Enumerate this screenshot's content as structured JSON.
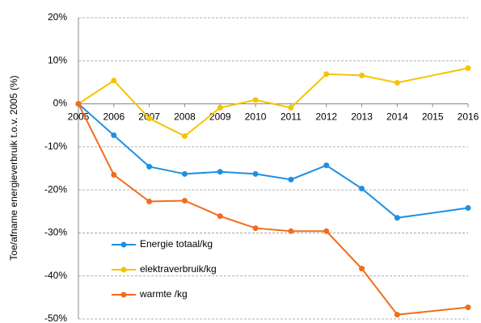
{
  "chart_data": {
    "type": "line",
    "y_label": "Toe/afname energieverbruik t.o.v. 2005 (%)",
    "x": [
      2005,
      2006,
      2007,
      2008,
      2009,
      2010,
      2011,
      2012,
      2013,
      2014,
      2016
    ],
    "xlim": [
      2005,
      2016
    ],
    "xticks": [
      2005,
      2006,
      2007,
      2008,
      2009,
      2010,
      2011,
      2012,
      2013,
      2014,
      2015,
      2016
    ],
    "ylim": [
      -50,
      20
    ],
    "yticks": [
      {
        "value": -50,
        "label": "-50%"
      },
      {
        "value": -40,
        "label": "-40%"
      },
      {
        "value": -30,
        "label": "-30%"
      },
      {
        "value": -20,
        "label": "-20%"
      },
      {
        "value": -10,
        "label": "-10%"
      },
      {
        "value": 0,
        "label": "0%"
      },
      {
        "value": 10,
        "label": "10%"
      },
      {
        "value": 20,
        "label": "20%"
      }
    ],
    "grid": true,
    "legend": "lower left",
    "series": [
      {
        "name": "Energie totaal/kg",
        "color": "#1e90e0",
        "values": [
          0,
          -7.3,
          -14.6,
          -16.3,
          -15.8,
          -16.3,
          -17.6,
          -14.3,
          -19.7,
          -26.5,
          -24.2
        ]
      },
      {
        "name": "elektraverbruik/kg",
        "color": "#f5c400",
        "values": [
          0,
          5.4,
          -3.4,
          -7.5,
          -0.9,
          0.9,
          -0.9,
          6.9,
          6.6,
          4.9,
          8.3
        ]
      },
      {
        "name": "warmte /kg",
        "color": "#f26c1c",
        "values": [
          0,
          -16.5,
          -22.7,
          -22.5,
          -26.1,
          -28.9,
          -29.6,
          -29.6,
          -38.3,
          -49,
          -47.3
        ]
      }
    ]
  }
}
